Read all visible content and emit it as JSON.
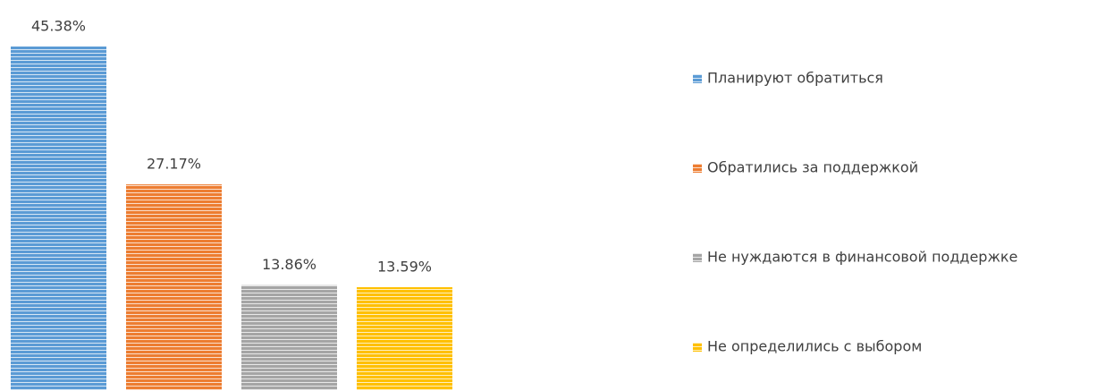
{
  "chart_data": {
    "type": "bar",
    "series": [
      {
        "name": "Планируют обратиться",
        "color": "#5b9bd5",
        "values": [
          45.38
        ],
        "value_labels": [
          "45.38%"
        ]
      },
      {
        "name": "Обратились за поддержкой",
        "color": "#ed7d31",
        "values": [
          27.17
        ],
        "value_labels": [
          "27.17%"
        ]
      },
      {
        "name": "Не нуждаются в финансовой поддержке",
        "color": "#a5a5a5",
        "values": [
          13.86
        ],
        "value_labels": [
          "13.86%"
        ]
      },
      {
        "name": "Не определились с выбором",
        "color": "#ffc000",
        "values": [
          13.59
        ],
        "value_labels": [
          "13.59%"
        ]
      }
    ]
  }
}
